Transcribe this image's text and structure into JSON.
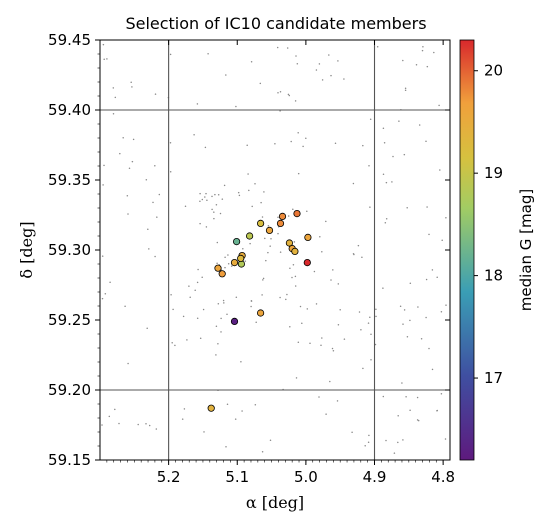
{
  "chart_data": {
    "type": "scatter",
    "title": "Selection of IC10 candidate members",
    "xlabel": "α [deg]",
    "ylabel": "δ [deg]",
    "xlim": [
      5.3,
      4.79
    ],
    "ylim": [
      59.15,
      59.45
    ],
    "x_ticks": [
      5.2,
      5.1,
      5.0,
      4.9,
      4.8
    ],
    "x_tick_labels": [
      "5.2",
      "5.1",
      "5.0",
      "4.9",
      "4.8"
    ],
    "y_ticks": [
      59.15,
      59.2,
      59.25,
      59.3,
      59.35,
      59.4,
      59.45
    ],
    "y_tick_labels": [
      "59.15",
      "59.20",
      "59.25",
      "59.30",
      "59.35",
      "59.40",
      "59.45"
    ],
    "grid_x": [
      5.2,
      4.9
    ],
    "grid_y": [
      59.2,
      59.4
    ],
    "colorbar": {
      "label": "median G [mag]",
      "range": [
        16.2,
        20.3
      ],
      "ticks": [
        17,
        18,
        19,
        20
      ],
      "tick_labels": [
        "17",
        "18",
        "19",
        "20"
      ],
      "colormap": "Spectral_r"
    },
    "candidates": [
      {
        "ra": 5.138,
        "dec": 59.187,
        "g": 19.4
      },
      {
        "ra": 5.104,
        "dec": 59.249,
        "g": 16.3
      },
      {
        "ra": 5.066,
        "dec": 59.255,
        "g": 19.6
      },
      {
        "ra": 5.128,
        "dec": 59.287,
        "g": 19.6
      },
      {
        "ra": 5.122,
        "dec": 59.283,
        "g": 19.7
      },
      {
        "ra": 5.104,
        "dec": 59.291,
        "g": 19.5
      },
      {
        "ra": 5.094,
        "dec": 59.29,
        "g": 18.8
      },
      {
        "ra": 5.093,
        "dec": 59.296,
        "g": 19.5
      },
      {
        "ra": 5.095,
        "dec": 59.294,
        "g": 19.3
      },
      {
        "ra": 5.101,
        "dec": 59.306,
        "g": 18.2
      },
      {
        "ra": 5.082,
        "dec": 59.31,
        "g": 18.9
      },
      {
        "ra": 5.066,
        "dec": 59.319,
        "g": 19.2
      },
      {
        "ra": 5.053,
        "dec": 59.314,
        "g": 19.6
      },
      {
        "ra": 5.037,
        "dec": 59.319,
        "g": 19.8
      },
      {
        "ra": 5.034,
        "dec": 59.324,
        "g": 19.8
      },
      {
        "ra": 5.013,
        "dec": 59.326,
        "g": 19.9
      },
      {
        "ra": 4.997,
        "dec": 59.309,
        "g": 19.6
      },
      {
        "ra": 5.024,
        "dec": 59.305,
        "g": 19.4
      },
      {
        "ra": 5.02,
        "dec": 59.301,
        "g": 19.6
      },
      {
        "ra": 5.016,
        "dec": 59.299,
        "g": 19.4
      },
      {
        "ra": 4.998,
        "dec": 59.291,
        "g": 20.3
      }
    ]
  }
}
